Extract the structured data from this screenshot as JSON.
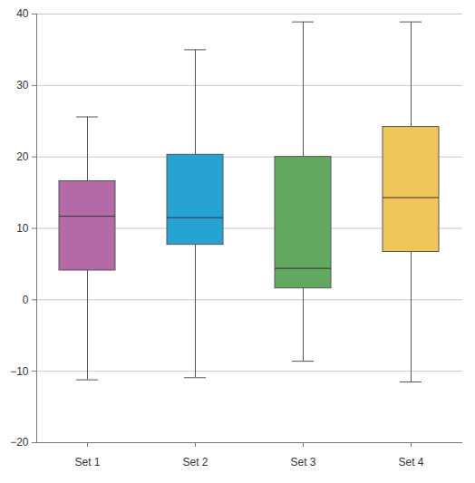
{
  "chart_data": {
    "type": "box",
    "categories": [
      "Set 1",
      "Set 2",
      "Set 3",
      "Set 4"
    ],
    "values": [
      {
        "min": -11.2,
        "q1": 4.1,
        "median": 11.7,
        "q3": 16.6,
        "max": 25.6
      },
      {
        "min": -10.9,
        "q1": 7.7,
        "median": 11.5,
        "q3": 20.3,
        "max": 35.0
      },
      {
        "min": -8.6,
        "q1": 1.6,
        "median": 4.4,
        "q3": 20.0,
        "max": 38.9
      },
      {
        "min": -11.5,
        "q1": 6.7,
        "median": 14.3,
        "q3": 24.2,
        "max": 38.9
      }
    ],
    "colors": [
      "#b36aa6",
      "#27a3d3",
      "#62a860",
      "#f0c55a"
    ],
    "ylim": [
      -20,
      40
    ],
    "yticks": [
      -20,
      -10,
      0,
      10,
      20,
      30,
      40
    ],
    "grid": true
  }
}
